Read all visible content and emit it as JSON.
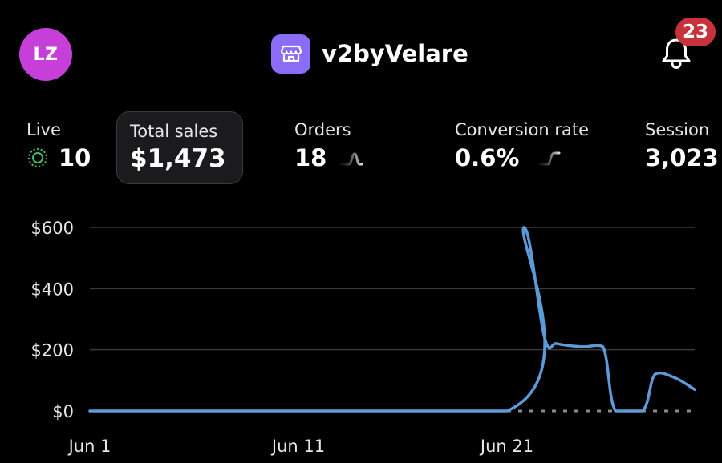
{
  "header": {
    "avatar_initials": "LZ",
    "store_icon": "storefront-icon",
    "store_name": "v2byVelare",
    "notifications_icon": "bell-icon",
    "notifications_count": "23"
  },
  "metrics": {
    "live": {
      "label": "Live",
      "value": "10",
      "icon": "live-pulse-icon"
    },
    "total_sales": {
      "label": "Total sales",
      "value": "$1,473",
      "selected": true
    },
    "orders": {
      "label": "Orders",
      "value": "18",
      "icon": "sparkline-icon"
    },
    "conversion_rate": {
      "label": "Conversion rate",
      "value": "0.6%",
      "icon": "sparkline-icon"
    },
    "sessions": {
      "label": "Session",
      "value": "3,023"
    }
  },
  "colors": {
    "background": "#000000",
    "accent_line": "#5b9bd8",
    "avatar": "#c63fd9",
    "store_icon_bg": "#8b6cf6",
    "badge": "#c8323a",
    "live": "#3fbf5f"
  },
  "chart_data": {
    "type": "line",
    "y_tick_labels": [
      "$600",
      "$400",
      "$200",
      "$0"
    ],
    "y_ticks": [
      600,
      400,
      200,
      0
    ],
    "x_tick_labels": [
      "Jun 1",
      "Jun 11",
      "Jun 21"
    ],
    "x_ticks": [
      1,
      11,
      21
    ],
    "ylim": [
      0,
      600
    ],
    "xlim": [
      1,
      30
    ],
    "grid": true,
    "series": [
      {
        "x": [
          1,
          21,
          21.8,
          22.8,
          23.4,
          24.6,
          25.6,
          26.2,
          27.5,
          28.1,
          29,
          30
        ],
        "values": [
          0,
          0,
          600,
          240,
          220,
          210,
          210,
          0,
          0,
          120,
          110,
          70
        ]
      },
      {
        "style": "dashed",
        "x": [
          21,
          30
        ],
        "values": [
          0,
          0
        ]
      }
    ]
  }
}
